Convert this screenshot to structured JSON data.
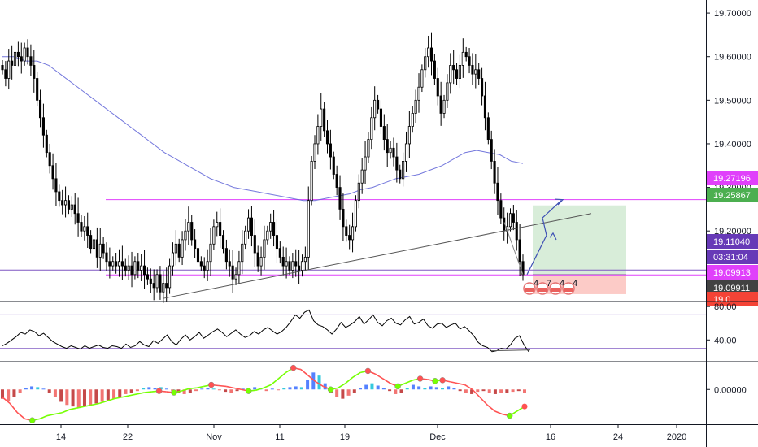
{
  "chart_data": [
    {
      "panel": "price",
      "type": "candlestick",
      "y_ticks": [
        "19.70000",
        "19.60000",
        "19.50000",
        "19.40000",
        "19.30000",
        "19.20000"
      ],
      "ylim": [
        19.04,
        19.73
      ],
      "x_tick_labels": [
        "14",
        "22",
        "Nov",
        "11",
        "19",
        "Dec",
        "16",
        "24",
        "2020"
      ],
      "close_series": [
        19.57,
        19.55,
        19.59,
        19.58,
        19.61,
        19.6,
        19.59,
        19.62,
        19.6,
        19.58,
        19.55,
        19.5,
        19.46,
        19.42,
        19.38,
        19.35,
        19.32,
        19.29,
        19.27,
        19.26,
        19.27,
        19.25,
        19.26,
        19.24,
        19.22,
        19.2,
        19.21,
        19.19,
        19.16,
        19.18,
        19.14,
        19.17,
        19.15,
        19.13,
        19.12,
        19.13,
        19.12,
        19.13,
        19.12,
        19.11,
        19.12,
        19.1,
        19.13,
        19.11,
        19.12,
        19.1,
        19.09,
        19.08,
        19.07,
        19.1,
        19.06,
        19.08,
        19.07,
        19.12,
        19.15,
        19.17,
        19.14,
        19.18,
        19.2,
        19.22,
        19.18,
        19.16,
        19.13,
        19.12,
        19.11,
        19.13,
        19.17,
        19.21,
        19.22,
        19.19,
        19.16,
        19.13,
        19.12,
        19.09,
        19.1,
        19.13,
        19.17,
        19.2,
        19.23,
        19.19,
        19.15,
        19.12,
        19.14,
        19.18,
        19.2,
        19.22,
        19.19,
        19.16,
        19.14,
        19.12,
        19.13,
        19.11,
        19.13,
        19.12,
        19.11,
        19.13,
        19.14,
        19.27,
        19.36,
        19.4,
        19.44,
        19.48,
        19.43,
        19.4,
        19.37,
        19.33,
        19.3,
        19.25,
        19.21,
        19.19,
        19.18,
        19.21,
        19.27,
        19.31,
        19.34,
        19.37,
        19.41,
        19.46,
        19.5,
        19.48,
        19.44,
        19.41,
        19.38,
        19.39,
        19.37,
        19.34,
        19.32,
        19.36,
        19.4,
        19.44,
        19.47,
        19.5,
        19.53,
        19.57,
        19.6,
        19.62,
        19.59,
        19.55,
        19.51,
        19.47,
        19.5,
        19.54,
        19.58,
        19.57,
        19.55,
        19.58,
        19.61,
        19.6,
        19.58,
        19.56,
        19.57,
        19.55,
        19.51,
        19.46,
        19.41,
        19.36,
        19.31,
        19.27,
        19.23,
        19.2,
        19.21,
        19.24,
        19.22,
        19.18,
        19.13,
        19.1
      ],
      "ma_line": [
        19.6,
        19.6,
        19.59,
        19.59,
        19.58,
        19.56,
        19.54,
        19.52,
        19.5,
        19.48,
        19.46,
        19.44,
        19.42,
        19.4,
        19.38,
        19.365,
        19.35,
        19.335,
        19.32,
        19.31,
        19.3,
        19.295,
        19.29,
        19.285,
        19.28,
        19.275,
        19.27,
        19.27,
        19.275,
        19.28,
        19.285,
        19.295,
        19.3,
        19.31,
        19.32,
        19.325,
        19.33,
        19.34,
        19.35,
        19.365,
        19.38,
        19.385,
        19.38,
        19.375,
        19.36,
        19.355
      ],
      "ranged_ma_start": 0,
      "trendline_low": [
        19.045,
        19.24
      ],
      "price_tags": [
        {
          "label": "19.27196",
          "color": "#e040fb",
          "text_color": "#ffffff",
          "value": 19.27196
        },
        {
          "label": "19.25867",
          "color": "#4caf50",
          "text_color": "#ffffff",
          "value": 19.25867
        },
        {
          "label": "19.11040",
          "color": "#673ab7",
          "text_color": "#ffffff",
          "value": 19.1104
        },
        {
          "label": "03:31:04",
          "color": "#673ab7",
          "text_color": "#ffffff"
        },
        {
          "label": "19.09913",
          "color": "#e040fb",
          "text_color": "#ffffff",
          "value": 19.09913
        },
        {
          "label": "19.09911",
          "color": "#424242",
          "text_color": "#ffffff",
          "value": 19.09911
        },
        {
          "label": "19.0",
          "color": "#f44336",
          "text_color": "#ffffff"
        }
      ],
      "horizontal_lines": [
        {
          "value": 19.27196,
          "color": "#e040fb"
        },
        {
          "value": 19.1104,
          "color": "#7e57c2"
        },
        {
          "value": 19.09913,
          "color": "#e040fb"
        }
      ],
      "position_tool": {
        "entry": 19.1,
        "target": 19.25867,
        "stop": 19.055
      },
      "event_markers": [
        "4",
        "7",
        "4",
        "4"
      ]
    },
    {
      "panel": "rsi",
      "type": "line",
      "y_ticks": [
        "80.00",
        "40.00"
      ],
      "ylim": [
        15,
        85
      ],
      "upper_band": 70,
      "lower_band": 30,
      "values": [
        33,
        36,
        40,
        44,
        49,
        47,
        52,
        50,
        45,
        48,
        43,
        38,
        35,
        32,
        30,
        33,
        31,
        29,
        33,
        30,
        32,
        34,
        31,
        30,
        33,
        32,
        30,
        35,
        31,
        33,
        38,
        34,
        32,
        39,
        36,
        41,
        46,
        38,
        34,
        41,
        46,
        40,
        44,
        49,
        42,
        46,
        50,
        53,
        49,
        44,
        48,
        52,
        47,
        43,
        45,
        50,
        47,
        52,
        55,
        51,
        47,
        50,
        55,
        62,
        70,
        66,
        73,
        76,
        63,
        58,
        56,
        52,
        47,
        53,
        61,
        55,
        58,
        62,
        68,
        59,
        64,
        70,
        61,
        57,
        63,
        66,
        60,
        58,
        64,
        68,
        59,
        61,
        65,
        57,
        54,
        59,
        60,
        55,
        58,
        60,
        53,
        56,
        51,
        45,
        37,
        33,
        31,
        26,
        27,
        30,
        29,
        34,
        42,
        45,
        34,
        26
      ]
    },
    {
      "panel": "oscillator",
      "type": "histogram+line",
      "y_ticks": [
        "0.00000"
      ],
      "ylim": [
        -0.045,
        0.035
      ],
      "histogram": [
        -0.012,
        -0.015,
        -0.01,
        -0.005,
        0.002,
        0.004,
        0.003,
        0.001,
        -0.004,
        -0.01,
        -0.016,
        -0.02,
        -0.022,
        -0.024,
        -0.022,
        -0.02,
        -0.018,
        -0.016,
        -0.014,
        -0.012,
        -0.01,
        -0.006,
        -0.004,
        -0.002,
        0.002,
        0.003,
        0.002,
        0.003,
        0.001,
        -0.002,
        -0.004,
        -0.006,
        -0.004,
        -0.002,
        0.001,
        0.002,
        0.001,
        -0.001,
        -0.003,
        -0.004,
        -0.002,
        0.001,
        0.002,
        0.003,
        0.001,
        -0.002,
        0.001,
        -0.001,
        0.002,
        0.003,
        0.004,
        0.003,
        0.012,
        0.022,
        0.018,
        0.008,
        -0.004,
        -0.01,
        -0.012,
        -0.008,
        -0.004,
        0.002,
        0.006,
        0.008,
        0.005,
        0.002,
        -0.002,
        -0.006,
        -0.004,
        0.002,
        0.006,
        0.004,
        0.002,
        0.004,
        0.003,
        0.002,
        0.004,
        0.002,
        -0.002,
        -0.004,
        -0.006,
        -0.003,
        -0.002,
        -0.004,
        -0.006,
        -0.005,
        -0.004,
        -0.003,
        -0.002,
        -0.004
      ],
      "signal": [
        -0.01,
        -0.018,
        -0.03,
        -0.038,
        -0.04,
        -0.038,
        -0.034,
        -0.032,
        -0.03,
        -0.026,
        -0.024,
        -0.022,
        -0.02,
        -0.018,
        -0.015,
        -0.012,
        -0.01,
        -0.008,
        -0.006,
        -0.004,
        -0.003,
        -0.002,
        -0.003,
        -0.004,
        -0.002,
        0.001,
        0.002,
        0.004,
        0.006,
        0.005,
        0.004,
        0.002,
        0.0,
        -0.002,
        -0.001,
        0.002,
        0.006,
        0.014,
        0.022,
        0.028,
        0.026,
        0.018,
        0.01,
        0.004,
        0.0,
        0.002,
        0.008,
        0.016,
        0.022,
        0.024,
        0.02,
        0.014,
        0.008,
        0.004,
        0.008,
        0.012,
        0.014,
        0.013,
        0.011,
        0.012,
        0.01,
        0.008,
        0.006,
        0.0,
        -0.01,
        -0.02,
        -0.028,
        -0.032,
        -0.034,
        -0.028,
        -0.022
      ]
    }
  ]
}
